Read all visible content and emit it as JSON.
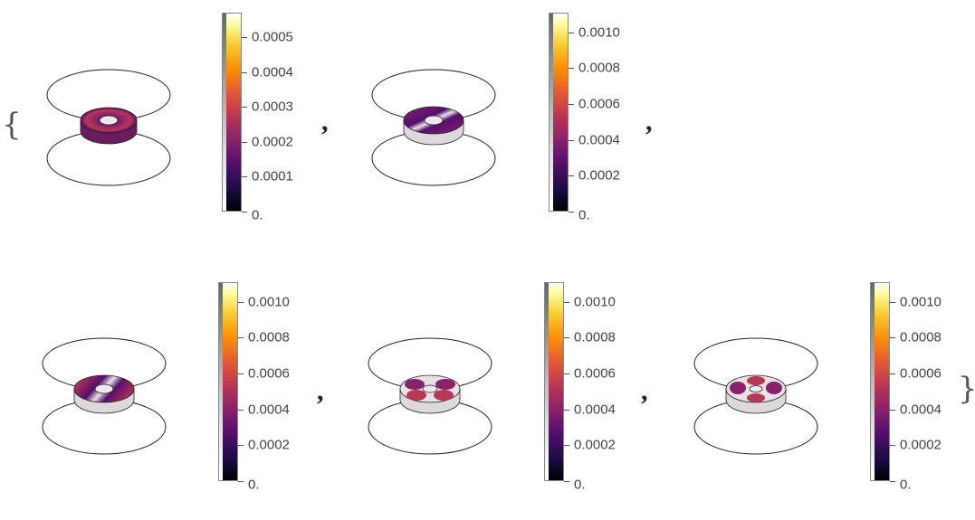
{
  "delimiters": {
    "open": "{",
    "close": "}",
    "separator": ","
  },
  "colormap": {
    "stops": [
      "#000004",
      "#1f0c48",
      "#550f6d",
      "#88226a",
      "#ba3655",
      "#e35933",
      "#f98e09",
      "#f8c932",
      "#fcffa4",
      "#ffffff"
    ]
  },
  "panels": [
    {
      "legend_ticks": [
        "0.0005",
        "0.0004",
        "0.0003",
        "0.0002",
        "0.0001",
        "0."
      ],
      "legend_max": 0.00057
    },
    {
      "legend_ticks": [
        "0.0010",
        "0.0008",
        "0.0006",
        "0.0004",
        "0.0002",
        "0."
      ],
      "legend_max": 0.00111
    },
    {
      "legend_ticks": [
        "0.0010",
        "0.0008",
        "0.0006",
        "0.0004",
        "0.0002",
        "0."
      ],
      "legend_max": 0.00111
    },
    {
      "legend_ticks": [
        "0.0010",
        "0.0008",
        "0.0006",
        "0.0004",
        "0.0002",
        "0."
      ],
      "legend_max": 0.00111
    },
    {
      "legend_ticks": [
        "0.0010",
        "0.0008",
        "0.0006",
        "0.0004",
        "0.0002",
        "0."
      ],
      "legend_max": 0.00111
    }
  ]
}
